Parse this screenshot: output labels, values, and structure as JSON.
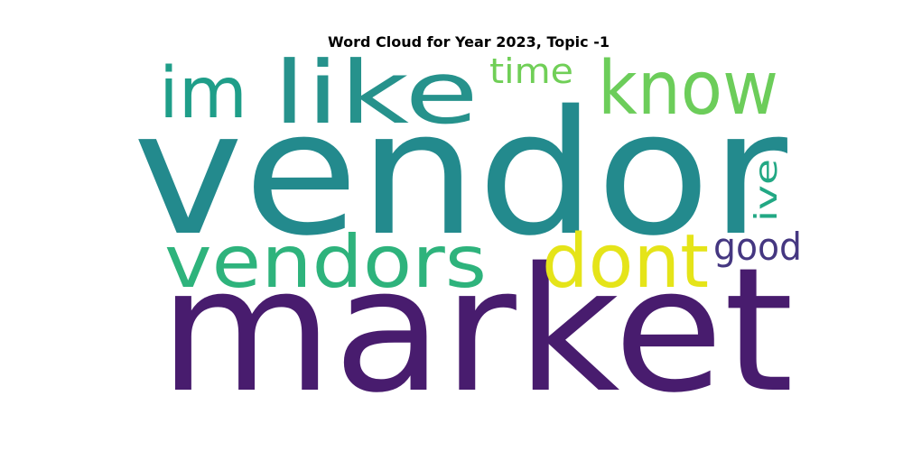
{
  "chart_data": {
    "type": "wordcloud",
    "title": "Word Cloud for Year 2023, Topic -1",
    "words": [
      {
        "text": "vendor",
        "rank": 1,
        "color": "#238a8d",
        "orientation": "horizontal"
      },
      {
        "text": "market",
        "rank": 2,
        "color": "#481c6e",
        "orientation": "horizontal"
      },
      {
        "text": "vendors",
        "rank": 3,
        "color": "#2eb37c",
        "orientation": "horizontal"
      },
      {
        "text": "like",
        "rank": 4,
        "color": "#26928c",
        "orientation": "horizontal"
      },
      {
        "text": "know",
        "rank": 5,
        "color": "#6ccd5a",
        "orientation": "horizontal"
      },
      {
        "text": "im",
        "rank": 6,
        "color": "#1f9e89",
        "orientation": "horizontal"
      },
      {
        "text": "dont",
        "rank": 7,
        "color": "#e5e419",
        "orientation": "horizontal"
      },
      {
        "text": "time",
        "rank": 8,
        "color": "#70cf57",
        "orientation": "horizontal"
      },
      {
        "text": "good",
        "rank": 9,
        "color": "#453781",
        "orientation": "horizontal"
      },
      {
        "text": "ive",
        "rank": 10,
        "color": "#22a884",
        "orientation": "vertical"
      }
    ]
  }
}
